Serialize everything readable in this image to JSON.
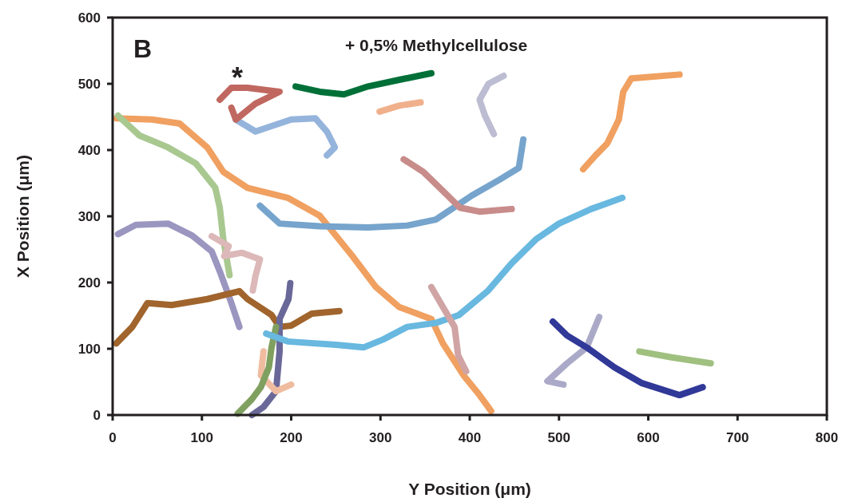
{
  "chart_data": {
    "type": "line",
    "title": "+ 0,5% Methylcellulose",
    "xlabel": "Y Position (μm)",
    "ylabel": "X Position (μm)",
    "xlim": [
      0,
      800
    ],
    "xticks": [
      0,
      100,
      200,
      300,
      400,
      500,
      600,
      700,
      800
    ],
    "ylim": [
      0,
      600
    ],
    "yticks": [
      0,
      100,
      200,
      300,
      400,
      500,
      600
    ],
    "grid": false,
    "marker": "none",
    "line_style": "solid",
    "annotations": [
      "B",
      "*"
    ],
    "series": [
      {
        "color": "#f0a060",
        "x": [
          4,
          44,
          75,
          106,
          124,
          151,
          196,
          232,
          268,
          295,
          321,
          357,
          370,
          393,
          411,
          424
        ],
        "values": [
          448,
          446,
          440,
          404,
          367,
          343,
          328,
          301,
          241,
          193,
          163,
          145,
          108,
          60,
          30,
          6
        ]
      },
      {
        "color": "#a8c890",
        "x": [
          6,
          30,
          62,
          93,
          115,
          120,
          124,
          131
        ],
        "values": [
          452,
          422,
          404,
          380,
          343,
          313,
          265,
          211
        ]
      },
      {
        "color": "#9b96c0",
        "x": [
          6,
          26,
          62,
          89,
          111,
          120,
          133,
          142
        ],
        "values": [
          273,
          287,
          289,
          271,
          247,
          217,
          169,
          133
        ]
      },
      {
        "color": "#dcb8b8",
        "x": [
          111,
          130,
          125,
          145,
          165,
          160,
          157
        ],
        "values": [
          270,
          255,
          240,
          245,
          235,
          210,
          188
        ]
      },
      {
        "color": "#a0642c",
        "x": [
          4,
          22,
          39,
          66,
          106,
          142,
          151,
          178,
          187,
          200,
          223,
          254
        ],
        "values": [
          108,
          133,
          169,
          166,
          175,
          187,
          175,
          151,
          133,
          135,
          153,
          157
        ]
      },
      {
        "color": "#6a6898",
        "x": [
          199,
          197,
          187,
          187,
          183,
          169,
          156
        ],
        "values": [
          199,
          175,
          145,
          96,
          36,
          12,
          0
        ]
      },
      {
        "color": "#f0bca0",
        "x": [
          169,
          166,
          183,
          200
        ],
        "values": [
          96,
          60,
          36,
          46
        ]
      },
      {
        "color": "#80a060",
        "x": [
          183,
          178,
          175,
          166,
          156,
          140
        ],
        "values": [
          133,
          102,
          72,
          42,
          24,
          2
        ]
      },
      {
        "color": "#68b8e0",
        "x": [
          172,
          196,
          250,
          281,
          303,
          330,
          362,
          388,
          420,
          447,
          474,
          500,
          536,
          571
        ],
        "values": [
          123,
          111,
          106,
          102,
          114,
          133,
          139,
          151,
          187,
          229,
          265,
          289,
          311,
          328
        ]
      },
      {
        "color": "#76a4cc",
        "x": [
          165,
          187,
          232,
          286,
          330,
          362,
          402,
          433,
          455,
          460
        ],
        "values": [
          316,
          289,
          285,
          283,
          286,
          295,
          331,
          355,
          373,
          416
        ]
      },
      {
        "color": "#c88c8a",
        "x": [
          326,
          348,
          371,
          389,
          411,
          447
        ],
        "values": [
          386,
          367,
          337,
          313,
          307,
          311
        ]
      },
      {
        "color": "#d0a4a4",
        "x": [
          357,
          370,
          383,
          387,
          396
        ],
        "values": [
          193,
          163,
          133,
          90,
          66
        ]
      },
      {
        "color": "#f0a060",
        "x": [
          527,
          541,
          554,
          567,
          572,
          581,
          635
        ],
        "values": [
          371,
          392,
          410,
          446,
          488,
          508,
          514
        ]
      },
      {
        "color": "#aaaac8",
        "x": [
          545,
          531,
          509,
          487,
          505
        ],
        "values": [
          148,
          102,
          78,
          51,
          46
        ]
      },
      {
        "color": "#303898",
        "x": [
          493,
          509,
          531,
          562,
          593,
          635,
          661
        ],
        "values": [
          141,
          120,
          102,
          72,
          48,
          30,
          42
        ]
      },
      {
        "color": "#a0c080",
        "x": [
          590,
          626,
          670
        ],
        "values": [
          96,
          87,
          78
        ]
      },
      {
        "color": "#bcbcd2",
        "x": [
          438,
          421,
          411,
          417,
          427
        ],
        "values": [
          512,
          500,
          476,
          452,
          424
        ]
      },
      {
        "color": "#f0b08c",
        "x": [
          299,
          321,
          345
        ],
        "values": [
          458,
          467,
          472
        ]
      },
      {
        "color": "#007038",
        "x": [
          205,
          232,
          259,
          286,
          321,
          357
        ],
        "values": [
          496,
          488,
          484,
          496,
          506,
          516
        ]
      },
      {
        "color": "#94b4dc",
        "x": [
          138,
          160,
          200,
          227,
          240,
          249,
          240
        ],
        "values": [
          446,
          428,
          446,
          448,
          428,
          404,
          392
        ]
      },
      {
        "color": "#c06860",
        "x": [
          120,
          133,
          151,
          187,
          160,
          138,
          133
        ],
        "values": [
          476,
          494,
          494,
          488,
          470,
          446,
          464
        ]
      }
    ]
  }
}
